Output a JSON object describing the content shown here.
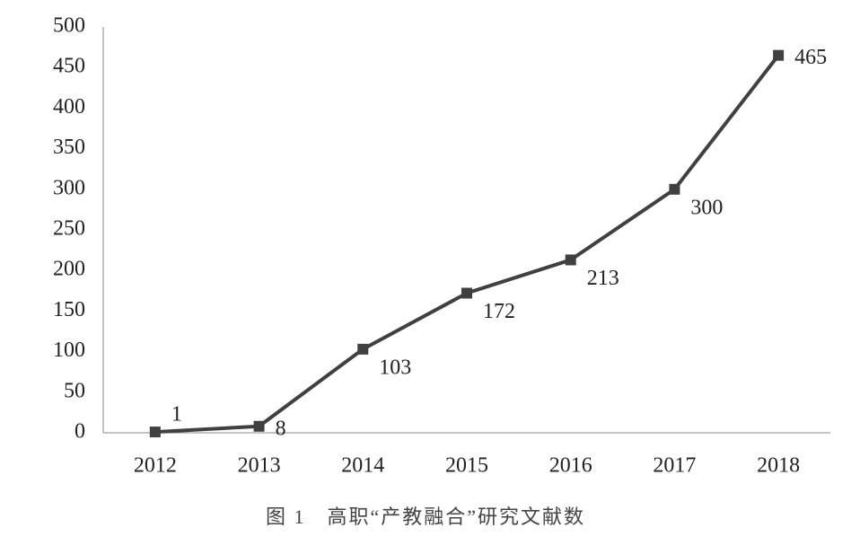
{
  "chart_data": {
    "type": "line",
    "title": "图 1　高职“产教融合”研究文献数",
    "categories": [
      "2012",
      "2013",
      "2014",
      "2015",
      "2016",
      "2017",
      "2018"
    ],
    "series": [
      {
        "color": "#404040",
        "values": [
          1,
          8,
          103,
          172,
          213,
          300,
          465
        ]
      }
    ],
    "ylim": [
      0,
      500
    ],
    "yticks": [
      0,
      50,
      100,
      150,
      200,
      250,
      300,
      350,
      400,
      450,
      500
    ],
    "grid": false
  }
}
